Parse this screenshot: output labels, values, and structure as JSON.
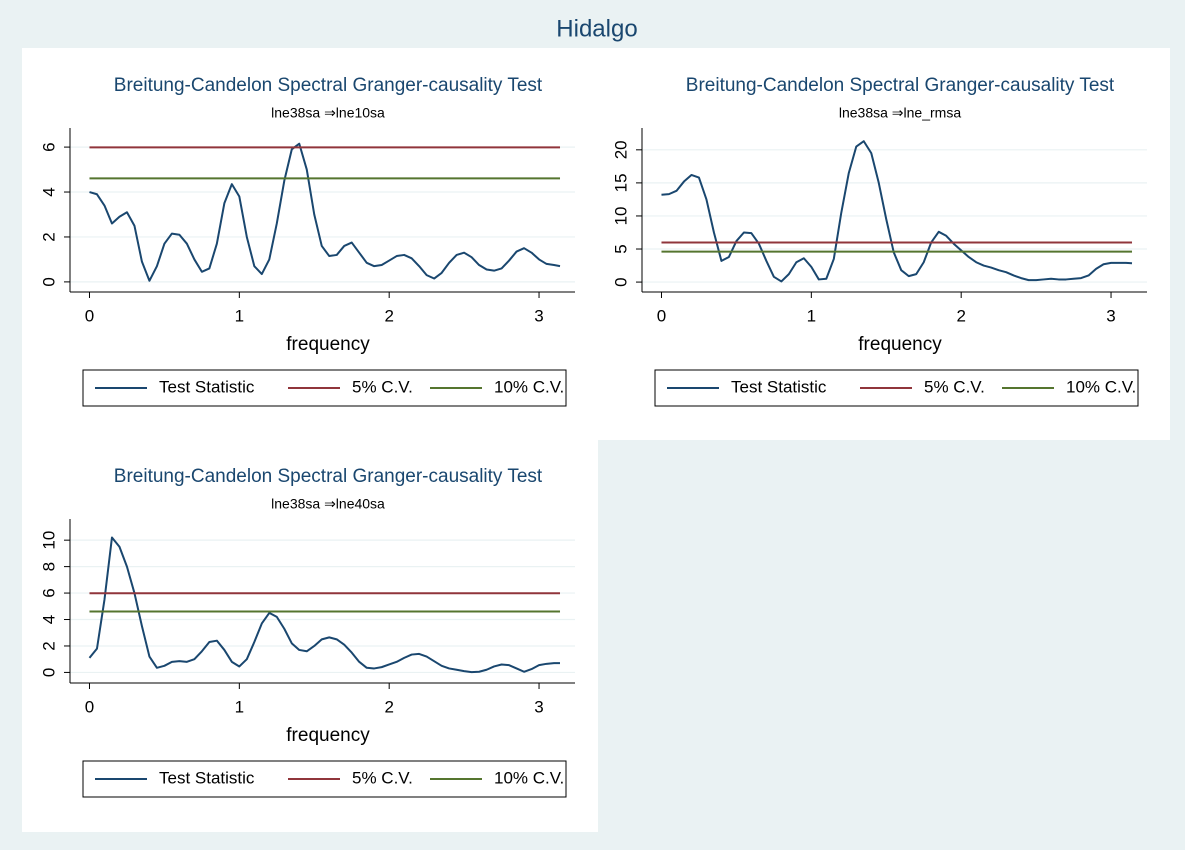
{
  "title": "Hidalgo",
  "chart_data": [
    {
      "type": "line",
      "title": "Breitung-Candelon Spectral Granger-causality Test",
      "subtitle": "lne38sa ⇒lne10sa",
      "xlabel": "frequency",
      "legend": "bottom",
      "grid": true,
      "x": [
        0,
        0.05,
        0.1,
        0.15,
        0.2,
        0.25,
        0.3,
        0.35,
        0.4,
        0.45,
        0.5,
        0.55,
        0.6,
        0.65,
        0.7,
        0.75,
        0.8,
        0.85,
        0.9,
        0.95,
        1.0,
        1.05,
        1.1,
        1.15,
        1.2,
        1.25,
        1.3,
        1.35,
        1.4,
        1.45,
        1.5,
        1.55,
        1.6,
        1.65,
        1.7,
        1.75,
        1.8,
        1.85,
        1.9,
        1.95,
        2.0,
        2.05,
        2.1,
        2.15,
        2.2,
        2.25,
        2.3,
        2.35,
        2.4,
        2.45,
        2.5,
        2.55,
        2.6,
        2.65,
        2.7,
        2.75,
        2.8,
        2.85,
        2.9,
        2.95,
        3.0,
        3.05,
        3.1,
        3.14
      ],
      "xlim": [
        -0.13,
        3.24
      ],
      "xticks": [
        0,
        1,
        2,
        3
      ],
      "ylim": [
        -0.45,
        6.85
      ],
      "yticks": [
        0,
        2,
        4,
        6
      ],
      "series": [
        {
          "name": "Test Statistic",
          "color": "#1a476f",
          "values": [
            4.0,
            3.9,
            3.4,
            2.6,
            2.9,
            3.1,
            2.5,
            0.9,
            0.05,
            0.7,
            1.7,
            2.15,
            2.1,
            1.7,
            1.0,
            0.45,
            0.6,
            1.7,
            3.5,
            4.35,
            3.8,
            2.0,
            0.7,
            0.35,
            1.0,
            2.6,
            4.5,
            5.9,
            6.15,
            5.0,
            3.0,
            1.6,
            1.15,
            1.2,
            1.6,
            1.75,
            1.3,
            0.85,
            0.7,
            0.75,
            0.95,
            1.15,
            1.2,
            1.05,
            0.7,
            0.3,
            0.15,
            0.4,
            0.85,
            1.2,
            1.3,
            1.1,
            0.75,
            0.55,
            0.5,
            0.6,
            0.95,
            1.35,
            1.5,
            1.3,
            1.0,
            0.8,
            0.75,
            0.7
          ]
        },
        {
          "name": "5% C.V.",
          "color": "#90353b",
          "values": [
            5.99,
            5.99,
            5.99,
            5.99,
            5.99,
            5.99,
            5.99,
            5.99,
            5.99,
            5.99,
            5.99,
            5.99,
            5.99,
            5.99,
            5.99,
            5.99,
            5.99,
            5.99,
            5.99,
            5.99,
            5.99,
            5.99,
            5.99,
            5.99,
            5.99,
            5.99,
            5.99,
            5.99,
            5.99,
            5.99,
            5.99,
            5.99,
            5.99,
            5.99,
            5.99,
            5.99,
            5.99,
            5.99,
            5.99,
            5.99,
            5.99,
            5.99,
            5.99,
            5.99,
            5.99,
            5.99,
            5.99,
            5.99,
            5.99,
            5.99,
            5.99,
            5.99,
            5.99,
            5.99,
            5.99,
            5.99,
            5.99,
            5.99,
            5.99,
            5.99,
            5.99,
            5.99,
            5.99,
            5.99
          ]
        },
        {
          "name": "10% C.V.",
          "color": "#55752f",
          "values": [
            4.61,
            4.61,
            4.61,
            4.61,
            4.61,
            4.61,
            4.61,
            4.61,
            4.61,
            4.61,
            4.61,
            4.61,
            4.61,
            4.61,
            4.61,
            4.61,
            4.61,
            4.61,
            4.61,
            4.61,
            4.61,
            4.61,
            4.61,
            4.61,
            4.61,
            4.61,
            4.61,
            4.61,
            4.61,
            4.61,
            4.61,
            4.61,
            4.61,
            4.61,
            4.61,
            4.61,
            4.61,
            4.61,
            4.61,
            4.61,
            4.61,
            4.61,
            4.61,
            4.61,
            4.61,
            4.61,
            4.61,
            4.61,
            4.61,
            4.61,
            4.61,
            4.61,
            4.61,
            4.61,
            4.61,
            4.61,
            4.61,
            4.61,
            4.61,
            4.61,
            4.61,
            4.61,
            4.61,
            4.61
          ]
        }
      ]
    },
    {
      "type": "line",
      "title": "Breitung-Candelon Spectral Granger-causality Test",
      "subtitle": "lne38sa ⇒lne_rmsa",
      "xlabel": "frequency",
      "legend": "bottom",
      "grid": true,
      "x": [
        0,
        0.05,
        0.1,
        0.15,
        0.2,
        0.25,
        0.3,
        0.35,
        0.4,
        0.45,
        0.5,
        0.55,
        0.6,
        0.65,
        0.7,
        0.75,
        0.8,
        0.85,
        0.9,
        0.95,
        1.0,
        1.05,
        1.1,
        1.15,
        1.2,
        1.25,
        1.3,
        1.35,
        1.4,
        1.45,
        1.5,
        1.55,
        1.6,
        1.65,
        1.7,
        1.75,
        1.8,
        1.85,
        1.9,
        1.95,
        2.0,
        2.05,
        2.1,
        2.15,
        2.2,
        2.25,
        2.3,
        2.35,
        2.4,
        2.45,
        2.5,
        2.55,
        2.6,
        2.65,
        2.7,
        2.75,
        2.8,
        2.85,
        2.9,
        2.95,
        3.0,
        3.05,
        3.1,
        3.14
      ],
      "xlim": [
        -0.13,
        3.24
      ],
      "xticks": [
        0,
        1,
        2,
        3
      ],
      "ylim": [
        -1.5,
        23.3
      ],
      "yticks": [
        0,
        5,
        10,
        15,
        20
      ],
      "series": [
        {
          "name": "Test Statistic",
          "color": "#1a476f",
          "values": [
            13.2,
            13.3,
            13.8,
            15.2,
            16.2,
            15.8,
            12.5,
            7.5,
            3.2,
            3.8,
            6.2,
            7.5,
            7.4,
            5.8,
            3.2,
            0.8,
            0.1,
            1.2,
            3.0,
            3.6,
            2.3,
            0.4,
            0.5,
            3.5,
            10.5,
            16.5,
            20.5,
            21.3,
            19.5,
            15.0,
            9.5,
            4.5,
            1.8,
            0.9,
            1.2,
            3.0,
            6.0,
            7.6,
            7.0,
            5.8,
            4.8,
            3.8,
            3.0,
            2.5,
            2.2,
            1.8,
            1.5,
            1.0,
            0.6,
            0.3,
            0.3,
            0.4,
            0.5,
            0.4,
            0.4,
            0.5,
            0.6,
            1.0,
            2.0,
            2.7,
            2.9,
            2.9,
            2.9,
            2.85
          ]
        },
        {
          "name": "5% C.V.",
          "color": "#90353b",
          "values": [
            5.99,
            5.99,
            5.99,
            5.99,
            5.99,
            5.99,
            5.99,
            5.99,
            5.99,
            5.99,
            5.99,
            5.99,
            5.99,
            5.99,
            5.99,
            5.99,
            5.99,
            5.99,
            5.99,
            5.99,
            5.99,
            5.99,
            5.99,
            5.99,
            5.99,
            5.99,
            5.99,
            5.99,
            5.99,
            5.99,
            5.99,
            5.99,
            5.99,
            5.99,
            5.99,
            5.99,
            5.99,
            5.99,
            5.99,
            5.99,
            5.99,
            5.99,
            5.99,
            5.99,
            5.99,
            5.99,
            5.99,
            5.99,
            5.99,
            5.99,
            5.99,
            5.99,
            5.99,
            5.99,
            5.99,
            5.99,
            5.99,
            5.99,
            5.99,
            5.99,
            5.99,
            5.99,
            5.99,
            5.99
          ]
        },
        {
          "name": "10% C.V.",
          "color": "#55752f",
          "values": [
            4.61,
            4.61,
            4.61,
            4.61,
            4.61,
            4.61,
            4.61,
            4.61,
            4.61,
            4.61,
            4.61,
            4.61,
            4.61,
            4.61,
            4.61,
            4.61,
            4.61,
            4.61,
            4.61,
            4.61,
            4.61,
            4.61,
            4.61,
            4.61,
            4.61,
            4.61,
            4.61,
            4.61,
            4.61,
            4.61,
            4.61,
            4.61,
            4.61,
            4.61,
            4.61,
            4.61,
            4.61,
            4.61,
            4.61,
            4.61,
            4.61,
            4.61,
            4.61,
            4.61,
            4.61,
            4.61,
            4.61,
            4.61,
            4.61,
            4.61,
            4.61,
            4.61,
            4.61,
            4.61,
            4.61,
            4.61,
            4.61,
            4.61,
            4.61,
            4.61,
            4.61,
            4.61,
            4.61,
            4.61
          ]
        }
      ]
    },
    {
      "type": "line",
      "title": "Breitung-Candelon Spectral Granger-causality Test",
      "subtitle": "lne38sa ⇒lne40sa",
      "xlabel": "frequency",
      "legend": "bottom",
      "grid": true,
      "x": [
        0,
        0.05,
        0.1,
        0.15,
        0.2,
        0.25,
        0.3,
        0.35,
        0.4,
        0.45,
        0.5,
        0.55,
        0.6,
        0.65,
        0.7,
        0.75,
        0.8,
        0.85,
        0.9,
        0.95,
        1.0,
        1.05,
        1.1,
        1.15,
        1.2,
        1.25,
        1.3,
        1.35,
        1.4,
        1.45,
        1.5,
        1.55,
        1.6,
        1.65,
        1.7,
        1.75,
        1.8,
        1.85,
        1.9,
        1.95,
        2.0,
        2.05,
        2.1,
        2.15,
        2.2,
        2.25,
        2.3,
        2.35,
        2.4,
        2.45,
        2.5,
        2.55,
        2.6,
        2.65,
        2.7,
        2.75,
        2.8,
        2.85,
        2.9,
        2.95,
        3.0,
        3.05,
        3.1,
        3.14
      ],
      "xlim": [
        -0.13,
        3.24
      ],
      "xticks": [
        0,
        1,
        2,
        3
      ],
      "ylim": [
        -0.8,
        11.6
      ],
      "yticks": [
        0,
        2,
        4,
        6,
        8,
        10
      ],
      "series": [
        {
          "name": "Test Statistic",
          "color": "#1a476f",
          "values": [
            1.1,
            1.8,
            5.5,
            10.2,
            9.5,
            8.0,
            6.0,
            3.5,
            1.2,
            0.35,
            0.5,
            0.8,
            0.85,
            0.8,
            1.0,
            1.6,
            2.3,
            2.4,
            1.7,
            0.8,
            0.45,
            1.0,
            2.3,
            3.7,
            4.5,
            4.2,
            3.3,
            2.2,
            1.7,
            1.6,
            2.0,
            2.5,
            2.65,
            2.5,
            2.1,
            1.5,
            0.8,
            0.35,
            0.3,
            0.4,
            0.6,
            0.8,
            1.1,
            1.35,
            1.4,
            1.2,
            0.85,
            0.5,
            0.3,
            0.2,
            0.1,
            0.02,
            0.05,
            0.2,
            0.45,
            0.6,
            0.55,
            0.3,
            0.05,
            0.25,
            0.55,
            0.65,
            0.7,
            0.7
          ]
        },
        {
          "name": "5% C.V.",
          "color": "#90353b",
          "values": [
            5.99,
            5.99,
            5.99,
            5.99,
            5.99,
            5.99,
            5.99,
            5.99,
            5.99,
            5.99,
            5.99,
            5.99,
            5.99,
            5.99,
            5.99,
            5.99,
            5.99,
            5.99,
            5.99,
            5.99,
            5.99,
            5.99,
            5.99,
            5.99,
            5.99,
            5.99,
            5.99,
            5.99,
            5.99,
            5.99,
            5.99,
            5.99,
            5.99,
            5.99,
            5.99,
            5.99,
            5.99,
            5.99,
            5.99,
            5.99,
            5.99,
            5.99,
            5.99,
            5.99,
            5.99,
            5.99,
            5.99,
            5.99,
            5.99,
            5.99,
            5.99,
            5.99,
            5.99,
            5.99,
            5.99,
            5.99,
            5.99,
            5.99,
            5.99,
            5.99,
            5.99,
            5.99,
            5.99,
            5.99
          ]
        },
        {
          "name": "10% C.V.",
          "color": "#55752f",
          "values": [
            4.61,
            4.61,
            4.61,
            4.61,
            4.61,
            4.61,
            4.61,
            4.61,
            4.61,
            4.61,
            4.61,
            4.61,
            4.61,
            4.61,
            4.61,
            4.61,
            4.61,
            4.61,
            4.61,
            4.61,
            4.61,
            4.61,
            4.61,
            4.61,
            4.61,
            4.61,
            4.61,
            4.61,
            4.61,
            4.61,
            4.61,
            4.61,
            4.61,
            4.61,
            4.61,
            4.61,
            4.61,
            4.61,
            4.61,
            4.61,
            4.61,
            4.61,
            4.61,
            4.61,
            4.61,
            4.61,
            4.61,
            4.61,
            4.61,
            4.61,
            4.61,
            4.61,
            4.61,
            4.61,
            4.61,
            4.61,
            4.61,
            4.61,
            4.61,
            4.61,
            4.61,
            4.61,
            4.61,
            4.61
          ]
        }
      ]
    }
  ]
}
